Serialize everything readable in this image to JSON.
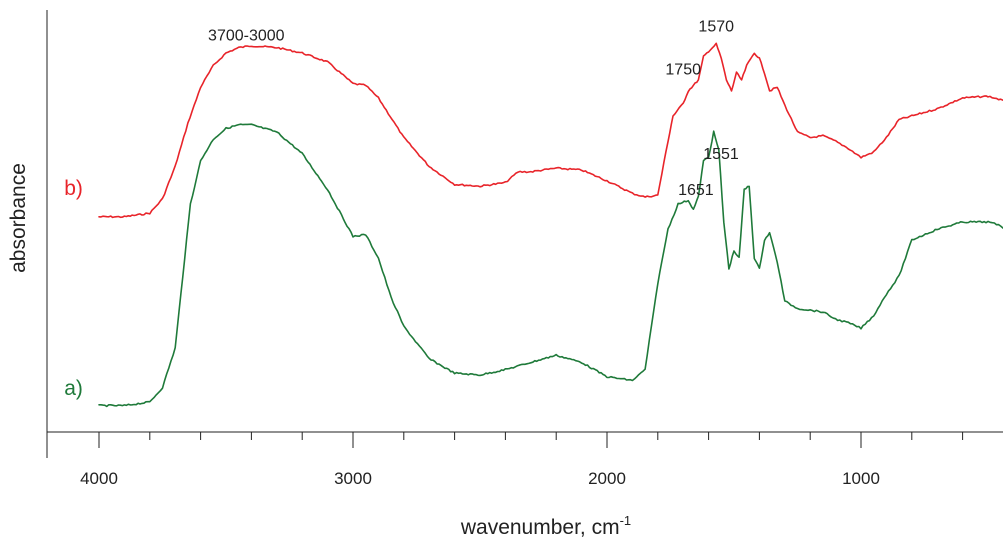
{
  "chart_data": {
    "type": "line",
    "title": "",
    "xlabel": "wavenumber, cm",
    "xlabel_sup": "-1",
    "ylabel": "absorbance",
    "xlim": [
      4000,
      400
    ],
    "ylim": [
      0,
      1
    ],
    "x_reversed": true,
    "grid": false,
    "x_major_ticks": [
      4000,
      3000,
      2000,
      1000
    ],
    "x_tick_labels": [
      "4000",
      "3000",
      "2000",
      "1000"
    ],
    "x_minor_step": 200,
    "series": [
      {
        "name": "b)",
        "color": "#e8242a",
        "x": [
          4000,
          3900,
          3800,
          3750,
          3700,
          3650,
          3600,
          3550,
          3500,
          3450,
          3400,
          3300,
          3200,
          3100,
          3000,
          2950,
          2900,
          2800,
          2700,
          2600,
          2500,
          2400,
          2350,
          2300,
          2200,
          2100,
          2000,
          1900,
          1850,
          1800,
          1760,
          1740,
          1700,
          1680,
          1660,
          1640,
          1620,
          1600,
          1570,
          1550,
          1530,
          1510,
          1490,
          1470,
          1450,
          1420,
          1400,
          1380,
          1360,
          1330,
          1300,
          1250,
          1200,
          1150,
          1100,
          1050,
          1000,
          950,
          900,
          850,
          800,
          700,
          600,
          500,
          450,
          400
        ],
        "y": [
          0.42,
          0.42,
          0.43,
          0.47,
          0.56,
          0.68,
          0.78,
          0.84,
          0.875,
          0.89,
          0.895,
          0.89,
          0.875,
          0.85,
          0.79,
          0.785,
          0.75,
          0.64,
          0.56,
          0.51,
          0.505,
          0.515,
          0.545,
          0.545,
          0.555,
          0.55,
          0.52,
          0.485,
          0.475,
          0.48,
          0.63,
          0.7,
          0.735,
          0.77,
          0.785,
          0.8,
          0.865,
          0.88,
          0.9,
          0.86,
          0.8,
          0.77,
          0.82,
          0.8,
          0.84,
          0.875,
          0.86,
          0.82,
          0.77,
          0.78,
          0.73,
          0.655,
          0.64,
          0.645,
          0.63,
          0.61,
          0.585,
          0.6,
          0.64,
          0.69,
          0.7,
          0.72,
          0.75,
          0.755,
          0.745,
          0.73
        ]
      },
      {
        "name": "a)",
        "color": "#1f7a3a",
        "x": [
          4000,
          3900,
          3800,
          3750,
          3700,
          3670,
          3640,
          3600,
          3550,
          3500,
          3450,
          3400,
          3300,
          3200,
          3100,
          3000,
          2950,
          2900,
          2850,
          2800,
          2700,
          2600,
          2500,
          2400,
          2300,
          2200,
          2100,
          2000,
          1900,
          1850,
          1800,
          1760,
          1720,
          1680,
          1660,
          1640,
          1620,
          1600,
          1580,
          1560,
          1540,
          1520,
          1500,
          1480,
          1460,
          1440,
          1420,
          1400,
          1380,
          1360,
          1330,
          1300,
          1250,
          1200,
          1150,
          1100,
          1050,
          1000,
          950,
          900,
          850,
          800,
          700,
          600,
          500,
          450,
          400
        ],
        "y": [
          0.04,
          0.04,
          0.05,
          0.09,
          0.2,
          0.4,
          0.6,
          0.72,
          0.78,
          0.81,
          0.82,
          0.82,
          0.8,
          0.74,
          0.64,
          0.51,
          0.515,
          0.45,
          0.34,
          0.26,
          0.17,
          0.13,
          0.125,
          0.14,
          0.16,
          0.18,
          0.16,
          0.12,
          0.11,
          0.14,
          0.38,
          0.53,
          0.6,
          0.61,
          0.585,
          0.62,
          0.72,
          0.73,
          0.8,
          0.75,
          0.55,
          0.42,
          0.47,
          0.45,
          0.64,
          0.65,
          0.45,
          0.42,
          0.5,
          0.52,
          0.44,
          0.33,
          0.31,
          0.305,
          0.3,
          0.28,
          0.27,
          0.255,
          0.29,
          0.35,
          0.4,
          0.5,
          0.53,
          0.55,
          0.55,
          0.54,
          0.51
        ]
      }
    ],
    "annotations": [
      {
        "text": "3700-3000",
        "x": 3420,
        "y": 0.91,
        "series": "b)"
      },
      {
        "text": "1570",
        "x": 1570,
        "y": 0.935,
        "series": "b)"
      },
      {
        "text": "1750",
        "x": 1700,
        "y": 0.815,
        "series": "b)"
      },
      {
        "text": "1551",
        "x": 1551,
        "y": 0.725,
        "series": "a)"
      },
      {
        "text": "1651",
        "x": 1650,
        "y": 0.625,
        "series": "a)"
      }
    ],
    "series_tags": [
      {
        "text": "b)",
        "color": "#e8242a",
        "x": 4100,
        "y": 0.48
      },
      {
        "text": "a)",
        "color": "#1f7a3a",
        "x": 4100,
        "y": 0.07
      }
    ]
  }
}
